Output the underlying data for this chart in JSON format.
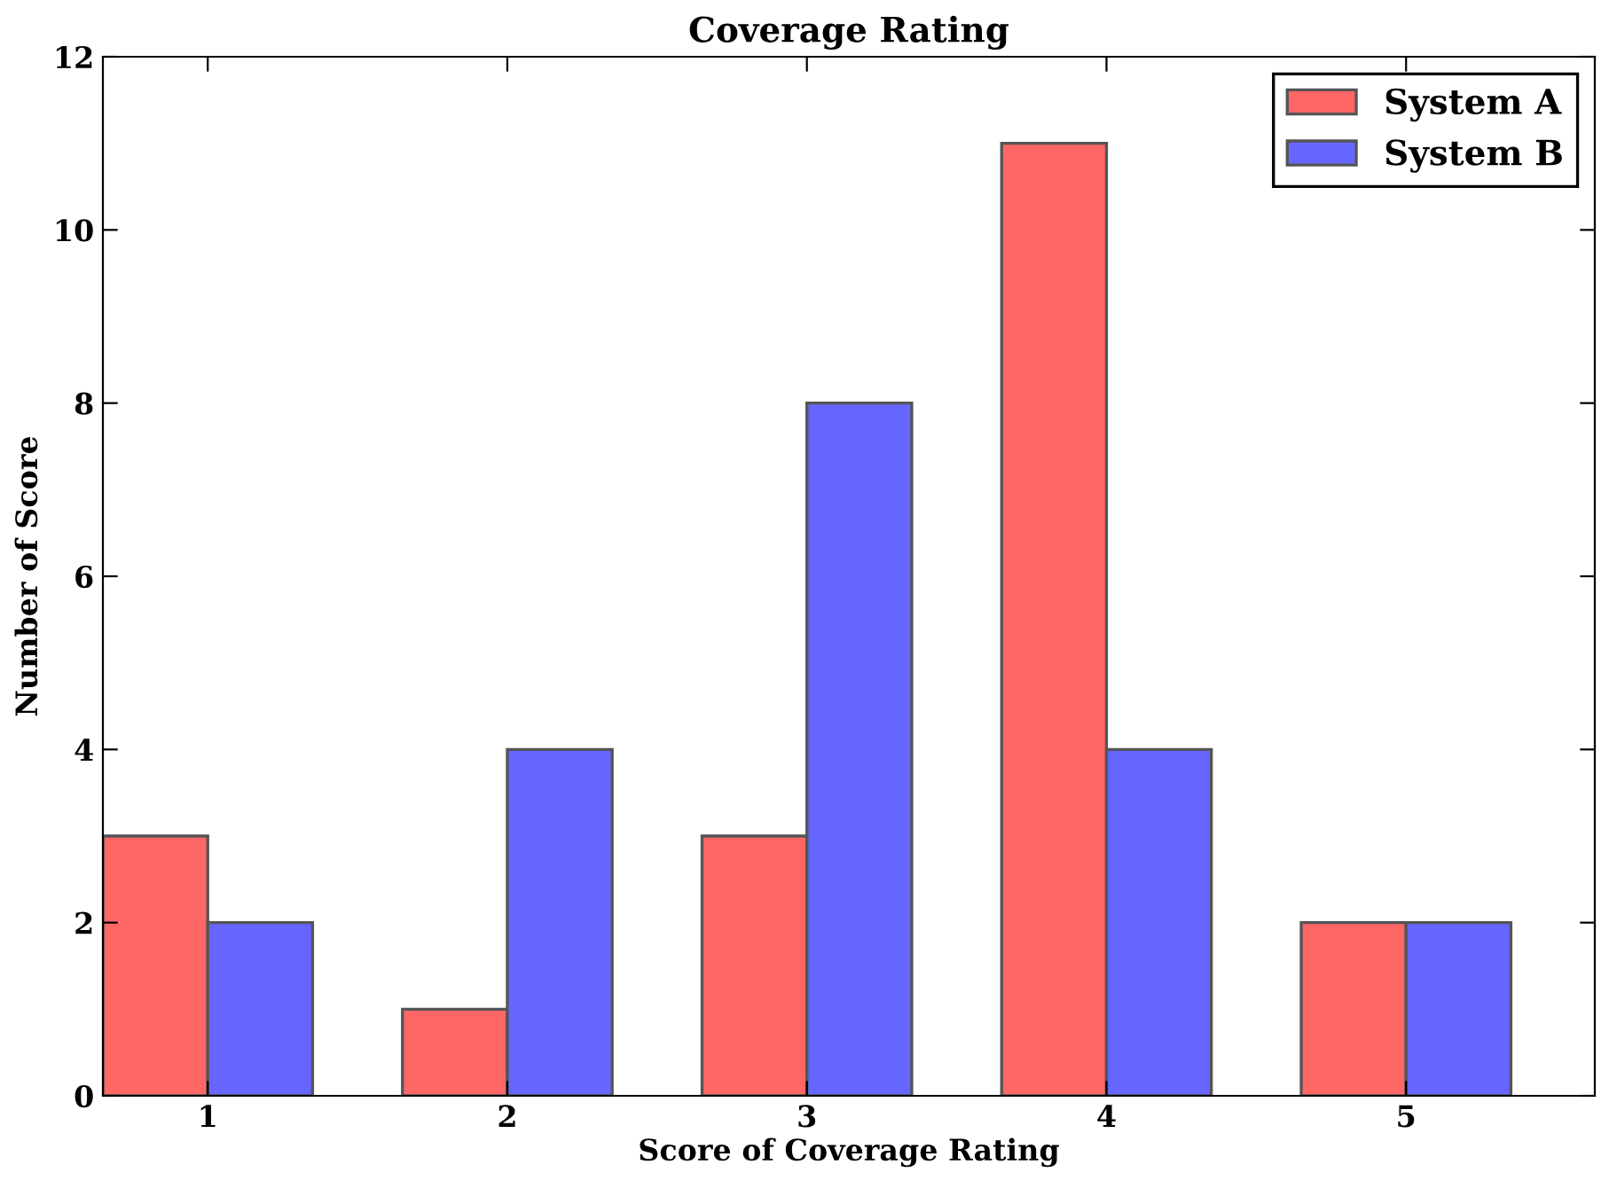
{
  "chart_data": {
    "type": "bar",
    "title": "Coverage Rating",
    "xlabel": "Score of Coverage Rating",
    "ylabel": "Number of Score",
    "categories": [
      "1",
      "2",
      "3",
      "4",
      "5"
    ],
    "series": [
      {
        "name": "System A",
        "color": "#ff6666",
        "values": [
          3,
          1,
          3,
          11,
          2
        ]
      },
      {
        "name": "System B",
        "color": "#6666ff",
        "values": [
          2,
          4,
          8,
          4,
          2
        ]
      }
    ],
    "ylim": [
      0,
      12
    ],
    "yticks": [
      0,
      2,
      4,
      6,
      8,
      10,
      12
    ],
    "legend": "top right",
    "grid": false
  }
}
